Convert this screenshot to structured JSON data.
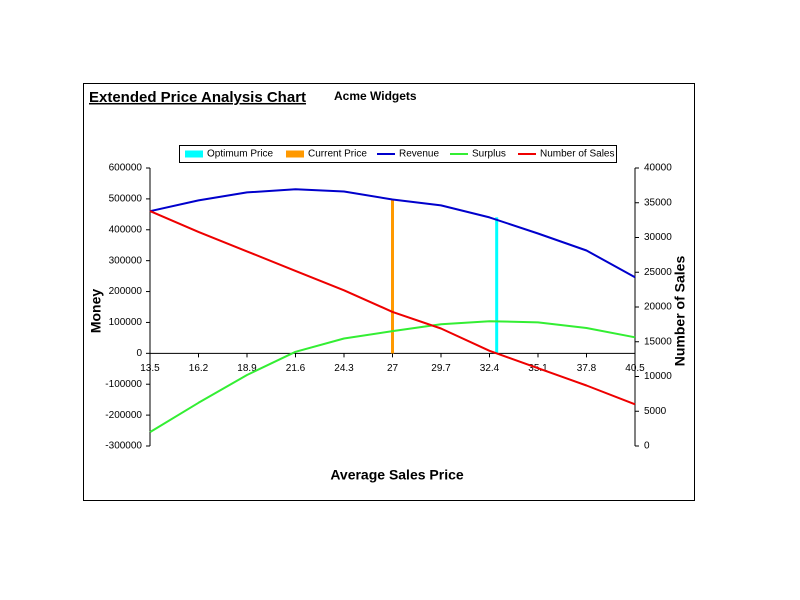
{
  "chart_data": {
    "type": "line",
    "title": "Extended Price Analysis Chart",
    "subtitle": "Acme Widgets",
    "x_label": "Average Sales Price",
    "y_label": "Money",
    "y2_label": "Number of Sales",
    "xlim": [
      13.5,
      40.5
    ],
    "xticks": [
      13.5,
      16.2,
      18.9,
      21.6,
      24.3,
      27,
      29.7,
      32.4,
      35.1,
      37.8,
      40.5
    ],
    "ylim": [
      -300000,
      600000
    ],
    "yticks": [
      -300000,
      -200000,
      -100000,
      0,
      100000,
      200000,
      300000,
      400000,
      500000,
      600000
    ],
    "y2lim": [
      0,
      40000
    ],
    "y2ticks": [
      0,
      5000,
      10000,
      15000,
      20000,
      25000,
      30000,
      35000,
      40000
    ],
    "x": [
      13.5,
      16.2,
      18.9,
      21.6,
      24.3,
      27,
      29.7,
      32.4,
      35.1,
      37.8,
      40.5
    ],
    "series": [
      {
        "name": "Optimum Price",
        "color": "#00ffff",
        "style": "drop",
        "x": [
          32.8
        ],
        "values": [
          440000
        ]
      },
      {
        "name": "Current Price",
        "color": "#ff9900",
        "style": "drop",
        "x": [
          27
        ],
        "values": [
          500000
        ]
      },
      {
        "name": "Revenue",
        "color": "#0000cc",
        "values": [
          460000,
          495000,
          521000,
          531000,
          524000,
          498000,
          479000,
          440000,
          388000,
          333000,
          246000
        ]
      },
      {
        "name": "Surplus",
        "color": "#33ee33",
        "values": [
          -255000,
          -160000,
          -70000,
          5000,
          48000,
          72000,
          94000,
          104000,
          100000,
          82000,
          52000
        ]
      },
      {
        "name": "Number of Sales",
        "color": "#ee0000",
        "axis": "y2",
        "values": [
          33800,
          30800,
          28000,
          25200,
          22400,
          19300,
          16900,
          13700,
          11200,
          8700,
          6000
        ]
      }
    ]
  }
}
